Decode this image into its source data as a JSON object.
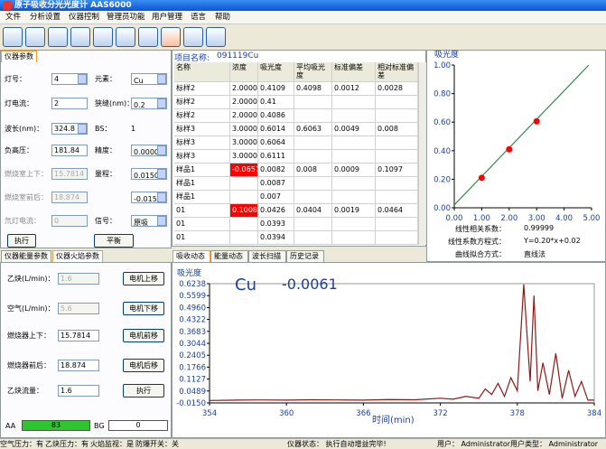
{
  "window_title": "原子吸收分光光度计  AAS6000",
  "menu": [
    "文件",
    "分析设置",
    "仪器控制",
    "管理员功能",
    "用户管理",
    "语言",
    "帮助"
  ],
  "instrument_tab": "仪器参数",
  "params_left": [
    {
      "label": "灯号：",
      "value": "4",
      "dropdown": true
    },
    {
      "label": "灯电流：",
      "value": "2"
    },
    {
      "label": "波长(nm)：",
      "value": "324.8",
      "dropdown": true
    },
    {
      "label": "负高压：",
      "value": "181.84"
    },
    {
      "label": "燃烧室上下：",
      "value": "15.7814",
      "disabled": true
    },
    {
      "label": "燃烧室前后：",
      "value": "18.874",
      "disabled": true
    },
    {
      "label": "氘灯电流：",
      "value": "0",
      "disabled": true
    }
  ],
  "params_right": [
    {
      "label": "元素：",
      "value": "Cu",
      "dropdown": true
    },
    {
      "label": "狭缝(nm)：",
      "value": "0.2",
      "dropdown": true
    },
    {
      "label": "BS：",
      "value": "1",
      "plain": true
    },
    {
      "label": "精度：",
      "value": "0.0000",
      "dropdown": true
    },
    {
      "label": "量程：",
      "value": "0.0150",
      "dropdown": true
    },
    {
      "value": "-0.0150",
      "dropdown": true
    },
    {
      "label": "信号：",
      "value": "原吸",
      "dropdown": true
    }
  ],
  "param_buttons": [
    "执行",
    "平衡"
  ],
  "project_label": "项目名称:",
  "project_name": "091119Cu",
  "table": {
    "columns": [
      "名称",
      "浓度",
      "吸光度",
      "平均吸光度",
      "标准偏差",
      "相对标准偏差"
    ],
    "rows": [
      [
        "标样2",
        "2.000000",
        "0.4109",
        "0.4098",
        "0.0012",
        "0.0028"
      ],
      [
        "标样2",
        "2.000000",
        "0.41",
        "",
        "",
        ""
      ],
      [
        "标样2",
        "2.000000",
        "0.4086",
        "",
        "",
        ""
      ],
      [
        "标样3",
        "3.000000",
        "0.6014",
        "0.6063",
        "0.0049",
        "0.008"
      ],
      [
        "标样3",
        "3.000000",
        "0.6064",
        "",
        "",
        ""
      ],
      [
        "标样3",
        "3.000000",
        "0.6111",
        "",
        "",
        ""
      ],
      [
        "样品1",
        "-0.0657",
        "0.0082",
        "0.008",
        "0.0009",
        "0.1097"
      ],
      [
        "样品1",
        "",
        "0.0087",
        "",
        "",
        ""
      ],
      [
        "样品1",
        "",
        "0.007",
        "",
        "",
        ""
      ],
      [
        "01",
        "0.1008",
        "0.0426",
        "0.0404",
        "0.0019",
        "0.0464"
      ],
      [
        "01",
        "",
        "0.0393",
        "",
        "",
        ""
      ],
      [
        "01",
        "",
        "0.0394",
        "",
        "",
        ""
      ]
    ],
    "highlight_cells": [
      [
        6,
        1
      ],
      [
        9,
        1
      ]
    ],
    "highlight_color": "#ff0000"
  },
  "calibration_info": [
    {
      "label": "线性相关系数：",
      "value": "0.99999"
    },
    {
      "label": "线性系数方程式：",
      "value": "Y=0.20*x+0.02"
    },
    {
      "label": "曲线拟合方式：",
      "value": "直线法"
    }
  ],
  "energy_tabs": [
    "仪器能量参数",
    "仪器火焰参数"
  ],
  "flame_params": [
    {
      "label": "乙炔(L/min)：",
      "value": "1.6",
      "disabled": true,
      "button": "电机上移"
    },
    {
      "label": "空气(L/min)：",
      "value": "5.6",
      "disabled": true,
      "button": "电机下移"
    },
    {
      "label": "燃烧器上下：",
      "value": "15.7814",
      "button": "电机前移"
    },
    {
      "label": "燃烧器前后：",
      "value": "18.874",
      "button": "电机后移"
    },
    {
      "label": "乙炔流量：",
      "value": "1.6",
      "button": "执行"
    }
  ],
  "aa_label": "AA",
  "aa_value": "83",
  "bg_label": "BG",
  "bg_value": "0",
  "chart_tabs": [
    "吸收动态",
    "能量动态",
    "波长扫描",
    "历史记录"
  ],
  "status": [
    "空气压力：有",
    "乙炔压力：有",
    "火焰监视：是",
    "防爆开关：关",
    "仪器状态： 执行自动增益完毕!",
    "用户： Administrator",
    "用户类型： Administrator"
  ],
  "chart_data": [
    {
      "type": "scatter",
      "title": "吸光度",
      "x": [
        1,
        2,
        3
      ],
      "values": [
        0.21,
        0.41,
        0.606
      ],
      "color": "#ff0000",
      "fit_line": {
        "x": [
          0,
          4.9
        ],
        "values": [
          0.02,
          1.0
        ],
        "color": "#2e8b57"
      },
      "xlim": [
        0,
        5
      ],
      "ylim": [
        0,
        1
      ],
      "xticks": [
        {
          "value": 0,
          "label": "0.00"
        },
        {
          "value": 1,
          "label": "1.00"
        },
        {
          "value": 2,
          "label": "2.00"
        },
        {
          "value": 3,
          "label": "3.00"
        },
        {
          "value": 4,
          "label": "4.00"
        },
        {
          "value": 5,
          "label": "5.00"
        }
      ],
      "yticks": [
        {
          "value": 0,
          "label": "0.00"
        },
        {
          "value": 0.2,
          "label": "0.20"
        },
        {
          "value": 0.4,
          "label": "0.40"
        },
        {
          "value": 0.6,
          "label": "0.60"
        },
        {
          "value": 0.8,
          "label": "0.80"
        },
        {
          "value": 1,
          "label": "1.00"
        }
      ]
    },
    {
      "type": "line",
      "y_label": "吸光度",
      "x_label": "时间(min)",
      "element": "Cu",
      "reading": "-0.0061",
      "x": [
        354,
        356,
        358,
        360,
        362,
        364,
        366,
        368,
        370,
        372,
        373,
        374,
        375,
        375.5,
        376,
        376.5,
        377,
        377.5,
        378,
        378.5,
        379,
        379.3,
        379.6,
        380,
        380.5,
        381,
        381.5,
        382,
        382.5,
        383,
        383.5,
        384
      ],
      "values": [
        -0.002,
        0.0,
        0.001,
        0.0,
        0.002,
        0.001,
        0.0,
        0.003,
        0.002,
        0.01,
        0.005,
        0.02,
        0.01,
        0.06,
        0.03,
        0.09,
        0.02,
        0.12,
        0.05,
        0.62,
        0.1,
        0.56,
        0.05,
        0.2,
        0.03,
        0.25,
        0.01,
        0.16,
        0.02,
        0.1,
        0.0,
        0.0
      ],
      "color": "#8b1a1a",
      "xlim": [
        354,
        384
      ],
      "ylim": [
        -0.015,
        0.6238
      ],
      "xticks": [
        354,
        360,
        366,
        372,
        378,
        384
      ],
      "yticks": [
        0.6238,
        0.5599,
        {
          "value": 0.496,
          "label": "0.4960"
        },
        0.4322,
        0.3683,
        0.3044,
        0.2405,
        0.1766,
        0.1127,
        0.0489,
        {
          "value": -0.015,
          "label": "-0.0150"
        }
      ]
    }
  ]
}
